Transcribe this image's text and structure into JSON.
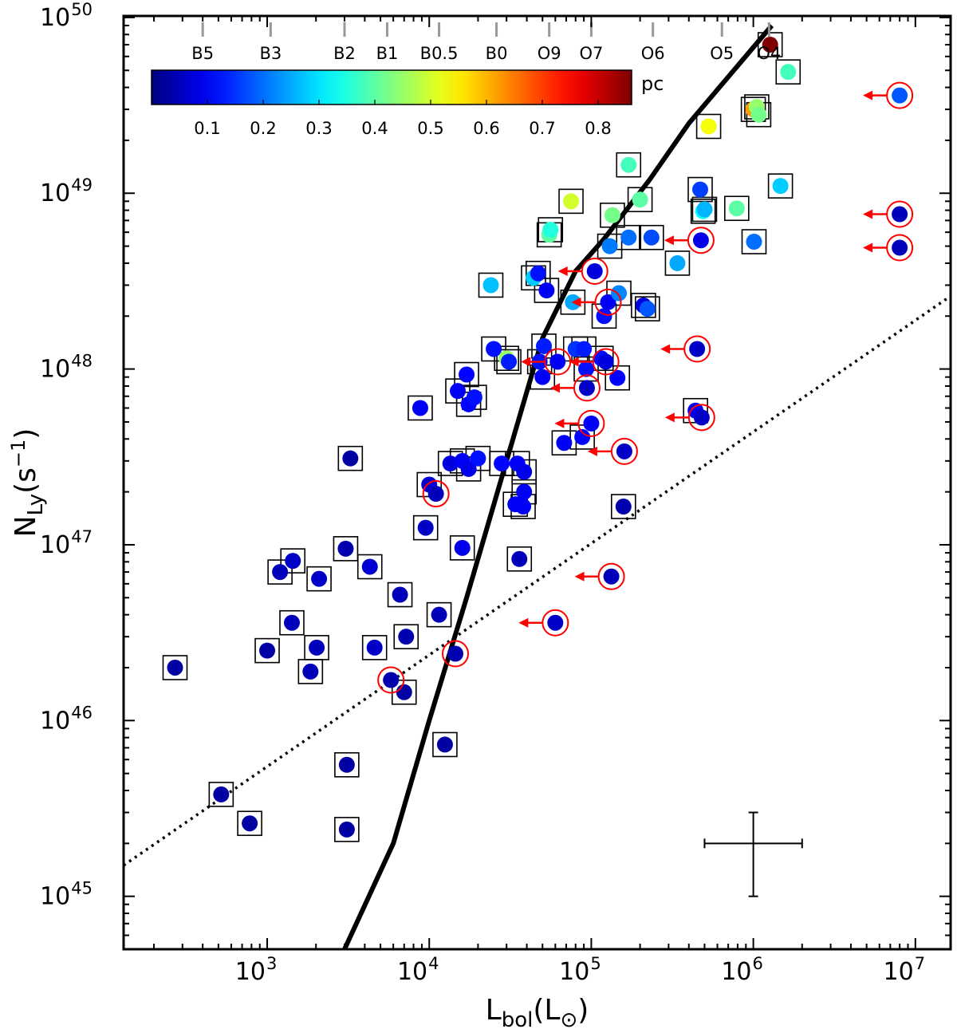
{
  "chart_data": {
    "type": "scatter",
    "xlabel": {
      "main": "L",
      "sub": "bol",
      "unit_open": "(L",
      "unit_sub": "⊙",
      "unit_close": ")"
    },
    "ylabel": {
      "main": "N",
      "sub": "Ly",
      "unit_open": "(s",
      "unit_sup": "−1",
      "unit_close": ")"
    },
    "xscale": "log",
    "yscale": "log",
    "xlim": [
      130,
      16500000
    ],
    "ylim": [
      5e+44,
      1.02e+50
    ],
    "x_ticks": [
      {
        "value": 1000,
        "base": "10",
        "exp": "3"
      },
      {
        "value": 10000,
        "base": "10",
        "exp": "4"
      },
      {
        "value": 100000,
        "base": "10",
        "exp": "5"
      },
      {
        "value": 1000000,
        "base": "10",
        "exp": "6"
      },
      {
        "value": 10000000,
        "base": "10",
        "exp": "7"
      }
    ],
    "y_ticks": [
      {
        "value": 1e+45,
        "base": "10",
        "exp": "45"
      },
      {
        "value": 1e+46,
        "base": "10",
        "exp": "46"
      },
      {
        "value": 1e+47,
        "base": "10",
        "exp": "47"
      },
      {
        "value": 1e+48,
        "base": "10",
        "exp": "48"
      },
      {
        "value": 1e+49,
        "base": "10",
        "exp": "49"
      },
      {
        "value": 1e+50,
        "base": "10",
        "exp": "50"
      }
    ],
    "spectral_types": [
      {
        "label": "B5",
        "lbol": 400
      },
      {
        "label": "B3",
        "lbol": 1050
      },
      {
        "label": "B2",
        "lbol": 3000
      },
      {
        "label": "B1",
        "lbol": 5500
      },
      {
        "label": "B0.5",
        "lbol": 11500
      },
      {
        "label": "B0",
        "lbol": 26000
      },
      {
        "label": "O9",
        "lbol": 55000
      },
      {
        "label": "O7",
        "lbol": 100000
      },
      {
        "label": "O6",
        "lbol": 240000
      },
      {
        "label": "O5",
        "lbol": 640000
      },
      {
        "label": "O4",
        "lbol": 1250000
      }
    ],
    "colorbar": {
      "label": "pc",
      "min": 0.0,
      "max": 0.86,
      "ticks": [
        "0.1",
        "0.2",
        "0.3",
        "0.4",
        "0.5",
        "0.6",
        "0.7",
        "0.8"
      ],
      "colormap": "jet"
    },
    "solid_line": {
      "name": "ZAMS Lyman continuum",
      "x": [
        3000,
        6000,
        10000,
        17000,
        30000,
        50000,
        80000,
        120000,
        230000,
        400000,
        1300000
      ],
      "y": [
        5e+44,
        2e+45,
        1e+46,
        5e+46,
        3e+47,
        1.5e+48,
        3.6e+48,
        5.5e+48,
        1.2e+49,
        2.5e+49,
        9e+49
      ]
    },
    "dotted_line": {
      "name": "reference",
      "x": [
        130,
        16500000
      ],
      "y": [
        1.5e+45,
        2.6e+48
      ]
    },
    "error_bar": {
      "x": 1000000,
      "y": 2e+45,
      "x_lo": 500000,
      "x_hi": 2000000,
      "y_lo": 1e+45,
      "y_hi": 3e+45
    },
    "points": [
      {
        "x": 270,
        "y": 2e+46,
        "pc": 0.03,
        "box": true
      },
      {
        "x": 520,
        "y": 3.8e+45,
        "pc": 0.03,
        "box": true
      },
      {
        "x": 780,
        "y": 2.6e+45,
        "pc": 0.03,
        "box": true
      },
      {
        "x": 1000,
        "y": 2.5e+46,
        "pc": 0.03,
        "box": true
      },
      {
        "x": 1200,
        "y": 7e+46,
        "pc": 0.05,
        "box": true
      },
      {
        "x": 1420,
        "y": 3.6e+46,
        "pc": 0.05,
        "box": true
      },
      {
        "x": 1440,
        "y": 8.1e+46,
        "pc": 0.06,
        "box": true
      },
      {
        "x": 1850,
        "y": 1.9e+46,
        "pc": 0.05,
        "box": true
      },
      {
        "x": 2020,
        "y": 2.6e+46,
        "pc": 0.05,
        "box": true
      },
      {
        "x": 2090,
        "y": 6.4e+46,
        "pc": 0.06,
        "box": true
      },
      {
        "x": 3050,
        "y": 9.5e+46,
        "pc": 0.04,
        "box": true
      },
      {
        "x": 3100,
        "y": 5.6e+45,
        "pc": 0.03,
        "box": true
      },
      {
        "x": 3100,
        "y": 2.4e+45,
        "pc": 0.03,
        "box": true
      },
      {
        "x": 3260,
        "y": 3.1e+47,
        "pc": 0.03,
        "box": true
      },
      {
        "x": 4300,
        "y": 7.5e+46,
        "pc": 0.07,
        "box": true
      },
      {
        "x": 4600,
        "y": 2.6e+46,
        "pc": 0.06,
        "box": true
      },
      {
        "x": 5800,
        "y": 1.7e+46,
        "pc": 0.04,
        "circle": true
      },
      {
        "x": 6600,
        "y": 5.2e+46,
        "pc": 0.05,
        "box": true
      },
      {
        "x": 7000,
        "y": 1.45e+46,
        "pc": 0.03,
        "box": true
      },
      {
        "x": 7200,
        "y": 3e+46,
        "pc": 0.04,
        "box": true
      },
      {
        "x": 9500,
        "y": 1.25e+47,
        "pc": 0.06,
        "box": true
      },
      {
        "x": 10000,
        "y": 2.2e+47,
        "pc": 0.07,
        "box": true
      },
      {
        "x": 8800,
        "y": 6e+47,
        "pc": 0.1,
        "box": true
      },
      {
        "x": 11000,
        "y": 1.95e+47,
        "pc": 0.05,
        "circle": true
      },
      {
        "x": 11500,
        "y": 4e+46,
        "pc": 0.05,
        "box": true
      },
      {
        "x": 12500,
        "y": 7.3e+45,
        "pc": 0.03,
        "box": true
      },
      {
        "x": 13500,
        "y": 2.9e+47,
        "pc": 0.08,
        "box": true
      },
      {
        "x": 14500,
        "y": 2.4e+46,
        "pc": 0.04,
        "circle": true
      },
      {
        "x": 15000,
        "y": 7.5e+47,
        "pc": 0.1,
        "box": true
      },
      {
        "x": 16000,
        "y": 3e+47,
        "pc": 0.1,
        "box": true
      },
      {
        "x": 16000,
        "y": 9.6e+46,
        "pc": 0.09,
        "box": true
      },
      {
        "x": 17000,
        "y": 9.3e+47,
        "pc": 0.11,
        "box": true
      },
      {
        "x": 17500,
        "y": 6.3e+47,
        "pc": 0.11,
        "box": true
      },
      {
        "x": 17500,
        "y": 2.7e+47,
        "pc": 0.09,
        "box": true
      },
      {
        "x": 19000,
        "y": 6.9e+47,
        "pc": 0.12,
        "box": true
      },
      {
        "x": 20000,
        "y": 3.1e+47,
        "pc": 0.12,
        "box": true
      },
      {
        "x": 24000,
        "y": 3e+48,
        "pc": 0.27,
        "box": true
      },
      {
        "x": 25000,
        "y": 1.3e+48,
        "pc": 0.12,
        "box": true
      },
      {
        "x": 28000,
        "y": 2.9e+47,
        "pc": 0.11,
        "box": true
      },
      {
        "x": 30000,
        "y": 1.15e+48,
        "pc": 0.45,
        "box": true
      },
      {
        "x": 31000,
        "y": 1.1e+48,
        "pc": 0.13,
        "box": true
      },
      {
        "x": 34000,
        "y": 1.7e+47,
        "pc": 0.1,
        "box": true
      },
      {
        "x": 35000,
        "y": 2.9e+47,
        "pc": 0.1,
        "box": true
      },
      {
        "x": 36000,
        "y": 8.3e+46,
        "pc": 0.05,
        "box": true
      },
      {
        "x": 38000,
        "y": 1.65e+47,
        "pc": 0.1,
        "box": true
      },
      {
        "x": 38500,
        "y": 2e+47,
        "pc": 0.1,
        "box": true
      },
      {
        "x": 38500,
        "y": 2.6e+47,
        "pc": 0.09,
        "box": true
      },
      {
        "x": 44000,
        "y": 3.3e+48,
        "pc": 0.28,
        "box": true
      },
      {
        "x": 47000,
        "y": 3.5e+48,
        "pc": 0.12,
        "box": true
      },
      {
        "x": 48000,
        "y": 1.1e+48,
        "pc": 0.12,
        "box": true
      },
      {
        "x": 50000,
        "y": 9e+47,
        "pc": 0.1,
        "box": true
      },
      {
        "x": 51000,
        "y": 1.35e+48,
        "pc": 0.13,
        "box": true
      },
      {
        "x": 53000,
        "y": 2.8e+48,
        "pc": 0.1,
        "box": true
      },
      {
        "x": 55000,
        "y": 5.8e+48,
        "pc": 0.4,
        "box": true
      },
      {
        "x": 56000,
        "y": 6.2e+48,
        "pc": 0.35,
        "box": true
      },
      {
        "x": 60000,
        "y": 3.6e+46,
        "pc": 0.06,
        "circle": true,
        "arrow": true
      },
      {
        "x": 62000,
        "y": 1.1e+48,
        "pc": 0.1,
        "circle": true,
        "arrow": true
      },
      {
        "x": 68000,
        "y": 3.8e+47,
        "pc": 0.1,
        "box": true
      },
      {
        "x": 75000,
        "y": 9e+48,
        "pc": 0.5,
        "box": true
      },
      {
        "x": 77000,
        "y": 2.4e+48,
        "pc": 0.25,
        "box": true
      },
      {
        "x": 80000,
        "y": 1.3e+48,
        "pc": 0.15,
        "box": true
      },
      {
        "x": 88000,
        "y": 4.1e+47,
        "pc": 0.11,
        "box": true
      },
      {
        "x": 90000,
        "y": 1.3e+48,
        "pc": 0.13,
        "box": true
      },
      {
        "x": 93000,
        "y": 1e+48,
        "pc": 0.12,
        "box": true
      },
      {
        "x": 94000,
        "y": 7.8e+47,
        "pc": 0.06,
        "circle": true,
        "arrow": true
      },
      {
        "x": 100000,
        "y": 4.9e+47,
        "pc": 0.1,
        "circle": true,
        "arrow": true
      },
      {
        "x": 105000,
        "y": 3.6e+48,
        "pc": 0.08,
        "circle": true,
        "arrow": true
      },
      {
        "x": 115000,
        "y": 1.15e+48,
        "pc": 0.12,
        "box": true
      },
      {
        "x": 120000,
        "y": 2e+48,
        "pc": 0.12,
        "box": true
      },
      {
        "x": 123000,
        "y": 1.1e+48,
        "pc": 0.08,
        "circle": true,
        "arrow": true
      },
      {
        "x": 127000,
        "y": 2.4e+48,
        "pc": 0.1,
        "circle": true,
        "arrow": true
      },
      {
        "x": 130000,
        "y": 5e+48,
        "pc": 0.21,
        "box": true
      },
      {
        "x": 133000,
        "y": 6.6e+46,
        "pc": 0.05,
        "circle": true,
        "arrow": true
      },
      {
        "x": 135000,
        "y": 7.5e+48,
        "pc": 0.42,
        "box": true
      },
      {
        "x": 145000,
        "y": 8.9e+47,
        "pc": 0.11,
        "box": true
      },
      {
        "x": 148000,
        "y": 2.7e+48,
        "pc": 0.22,
        "box": true
      },
      {
        "x": 158000,
        "y": 1.65e+47,
        "pc": 0.04,
        "box": true
      },
      {
        "x": 160000,
        "y": 3.4e+47,
        "pc": 0.06,
        "circle": true,
        "arrow": true
      },
      {
        "x": 170000,
        "y": 1.45e+49,
        "pc": 0.38,
        "box": true
      },
      {
        "x": 170000,
        "y": 5.6e+48,
        "pc": 0.2,
        "box": true
      },
      {
        "x": 200000,
        "y": 9.2e+48,
        "pc": 0.4,
        "box": true
      },
      {
        "x": 210000,
        "y": 2.3e+48,
        "pc": 0.08,
        "box": true
      },
      {
        "x": 222000,
        "y": 2.2e+48,
        "pc": 0.18,
        "box": true
      },
      {
        "x": 235000,
        "y": 5.6e+48,
        "pc": 0.17,
        "box": true
      },
      {
        "x": 340000,
        "y": 4e+48,
        "pc": 0.25,
        "box": true
      },
      {
        "x": 440000,
        "y": 5.8e+47,
        "pc": 0.1,
        "box": true
      },
      {
        "x": 450000,
        "y": 1.3e+48,
        "pc": 0.06,
        "circle": true,
        "arrow": true
      },
      {
        "x": 470000,
        "y": 1.05e+49,
        "pc": 0.16,
        "box": true
      },
      {
        "x": 475000,
        "y": 5.4e+48,
        "pc": 0.09,
        "circle": true,
        "arrow": true
      },
      {
        "x": 480000,
        "y": 5.3e+47,
        "pc": 0.06,
        "circle": true,
        "arrow": true
      },
      {
        "x": 490000,
        "y": 7.9e+48,
        "pc": 0.33,
        "box": true
      },
      {
        "x": 500000,
        "y": 8.1e+48,
        "pc": 0.26,
        "box": true
      },
      {
        "x": 530000,
        "y": 2.4e+49,
        "pc": 0.53,
        "box": true
      },
      {
        "x": 790000,
        "y": 8.2e+48,
        "pc": 0.4,
        "box": true
      },
      {
        "x": 1010000,
        "y": 5.3e+48,
        "pc": 0.2,
        "box": true
      },
      {
        "x": 1000000,
        "y": 3e+49,
        "pc": 0.62,
        "box": true
      },
      {
        "x": 1050000,
        "y": 3.1e+49,
        "pc": 0.45,
        "box": true
      },
      {
        "x": 1080000,
        "y": 2.8e+49,
        "pc": 0.42,
        "box": true
      },
      {
        "x": 1270000,
        "y": 7e+49,
        "pc": 0.86,
        "box": true
      },
      {
        "x": 1470000,
        "y": 1.1e+49,
        "pc": 0.28,
        "box": true
      },
      {
        "x": 1640000,
        "y": 4.9e+49,
        "pc": 0.38,
        "box": true
      },
      {
        "x": 8000000,
        "y": 3.6e+49,
        "pc": 0.18,
        "circle": true,
        "arrow": true
      },
      {
        "x": 8000000,
        "y": 7.6e+48,
        "pc": 0.05,
        "circle": true,
        "arrow": true
      },
      {
        "x": 8000000,
        "y": 4.9e+48,
        "pc": 0.05,
        "circle": true,
        "arrow": true
      }
    ]
  }
}
